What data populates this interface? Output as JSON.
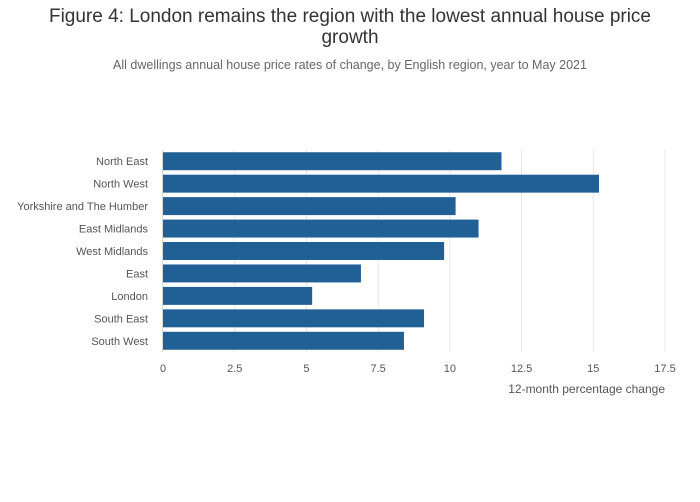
{
  "chart_data": {
    "type": "bar",
    "orientation": "horizontal",
    "title": "Figure 4: London remains the region with the lowest annual house price growth",
    "subtitle": "All dwellings annual house price rates of change, by English region, year to May 2021",
    "xlabel": "12-month percentage change",
    "ylabel": "",
    "categories": [
      "North East",
      "North West",
      "Yorkshire and The Humber",
      "East Midlands",
      "West Midlands",
      "East",
      "London",
      "South East",
      "South West"
    ],
    "values": [
      11.8,
      15.2,
      10.2,
      11.0,
      9.8,
      6.9,
      5.2,
      9.1,
      8.4
    ],
    "xlim": [
      0,
      17.5
    ],
    "xticks": [
      0,
      2.5,
      5,
      7.5,
      10,
      12.5,
      15,
      17.5
    ],
    "xtick_labels": [
      "0",
      "2.5",
      "5",
      "7.5",
      "10",
      "12.5",
      "15",
      "17.5"
    ],
    "grid": true,
    "bar_color": "#206095",
    "grid_color": "#e5e5e5",
    "legend": "none"
  }
}
